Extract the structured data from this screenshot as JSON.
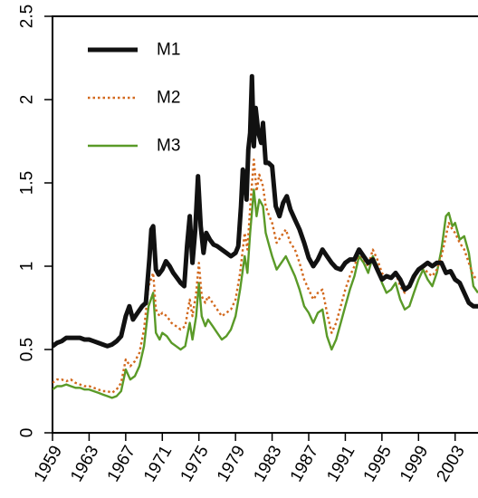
{
  "chart_data": {
    "type": "line",
    "xlim": [
      1959,
      2005.5
    ],
    "ylim": [
      0,
      2.5
    ],
    "x_ticks": [
      "1959",
      "1963",
      "1967",
      "1971",
      "1975",
      "1979",
      "1983",
      "1987",
      "1991",
      "1995",
      "1999",
      "2003"
    ],
    "y_ticks": [
      "0",
      "0.5",
      "1",
      "1.5",
      "2",
      "2.5"
    ],
    "legend_position": "top-left",
    "grid": false,
    "series": [
      {
        "name": "M1",
        "color": "#111111",
        "style": "solid-thick",
        "points": [
          [
            1959,
            0.52
          ],
          [
            1959.5,
            0.54
          ],
          [
            1960,
            0.55
          ],
          [
            1960.5,
            0.57
          ],
          [
            1961,
            0.57
          ],
          [
            1961.5,
            0.57
          ],
          [
            1962,
            0.57
          ],
          [
            1962.5,
            0.56
          ],
          [
            1963,
            0.56
          ],
          [
            1963.5,
            0.55
          ],
          [
            1964,
            0.54
          ],
          [
            1964.5,
            0.53
          ],
          [
            1965,
            0.52
          ],
          [
            1965.5,
            0.53
          ],
          [
            1966,
            0.55
          ],
          [
            1966.5,
            0.58
          ],
          [
            1967,
            0.7
          ],
          [
            1967.4,
            0.76
          ],
          [
            1967.8,
            0.68
          ],
          [
            1968.3,
            0.72
          ],
          [
            1968.8,
            0.76
          ],
          [
            1969.2,
            0.78
          ],
          [
            1969.6,
            1.05
          ],
          [
            1969.8,
            1.22
          ],
          [
            1970,
            1.24
          ],
          [
            1970.3,
            0.98
          ],
          [
            1970.6,
            0.95
          ],
          [
            1971,
            0.98
          ],
          [
            1971.4,
            1.03
          ],
          [
            1971.8,
            1.0
          ],
          [
            1972.2,
            0.96
          ],
          [
            1972.6,
            0.93
          ],
          [
            1973,
            0.9
          ],
          [
            1973.4,
            0.88
          ],
          [
            1973.7,
            1.12
          ],
          [
            1974,
            1.3
          ],
          [
            1974.3,
            1.02
          ],
          [
            1974.6,
            1.22
          ],
          [
            1974.9,
            1.54
          ],
          [
            1975.2,
            1.24
          ],
          [
            1975.5,
            1.08
          ],
          [
            1975.8,
            1.2
          ],
          [
            1976.2,
            1.16
          ],
          [
            1976.6,
            1.13
          ],
          [
            1977,
            1.12
          ],
          [
            1977.5,
            1.1
          ],
          [
            1978,
            1.08
          ],
          [
            1978.5,
            1.06
          ],
          [
            1979,
            1.08
          ],
          [
            1979.3,
            1.12
          ],
          [
            1979.6,
            1.36
          ],
          [
            1979.8,
            1.58
          ],
          [
            1980,
            1.55
          ],
          [
            1980.2,
            1.4
          ],
          [
            1980.4,
            1.7
          ],
          [
            1980.6,
            1.8
          ],
          [
            1980.8,
            2.14
          ],
          [
            1981,
            1.72
          ],
          [
            1981.2,
            1.95
          ],
          [
            1981.5,
            1.8
          ],
          [
            1981.8,
            1.74
          ],
          [
            1982,
            1.86
          ],
          [
            1982.3,
            1.62
          ],
          [
            1982.6,
            1.62
          ],
          [
            1983,
            1.6
          ],
          [
            1983.4,
            1.36
          ],
          [
            1983.8,
            1.3
          ],
          [
            1984.2,
            1.38
          ],
          [
            1984.6,
            1.42
          ],
          [
            1985,
            1.34
          ],
          [
            1985.5,
            1.28
          ],
          [
            1986,
            1.22
          ],
          [
            1986.5,
            1.14
          ],
          [
            1987,
            1.05
          ],
          [
            1987.5,
            1.0
          ],
          [
            1988,
            1.04
          ],
          [
            1988.5,
            1.1
          ],
          [
            1989,
            1.06
          ],
          [
            1989.5,
            1.02
          ],
          [
            1990,
            0.99
          ],
          [
            1990.5,
            0.98
          ],
          [
            1991,
            1.02
          ],
          [
            1991.5,
            1.04
          ],
          [
            1992,
            1.04
          ],
          [
            1992.5,
            1.1
          ],
          [
            1993,
            1.06
          ],
          [
            1993.5,
            1.02
          ],
          [
            1994,
            1.04
          ],
          [
            1994.5,
            0.98
          ],
          [
            1995,
            0.92
          ],
          [
            1995.5,
            0.94
          ],
          [
            1996,
            0.93
          ],
          [
            1996.5,
            0.96
          ],
          [
            1997,
            0.92
          ],
          [
            1997.5,
            0.86
          ],
          [
            1998,
            0.88
          ],
          [
            1998.5,
            0.94
          ],
          [
            1999,
            0.98
          ],
          [
            1999.5,
            1.0
          ],
          [
            2000,
            1.02
          ],
          [
            2000.5,
            1.0
          ],
          [
            2001,
            1.02
          ],
          [
            2001.5,
            1.02
          ],
          [
            2002,
            0.96
          ],
          [
            2002.5,
            0.97
          ],
          [
            2003,
            0.92
          ],
          [
            2003.5,
            0.9
          ],
          [
            2004,
            0.84
          ],
          [
            2004.5,
            0.78
          ],
          [
            2005,
            0.76
          ],
          [
            2005.5,
            0.76
          ]
        ]
      },
      {
        "name": "M2",
        "color": "#d2691e",
        "style": "dotted",
        "points": [
          [
            1959,
            0.3
          ],
          [
            1959.5,
            0.32
          ],
          [
            1960,
            0.32
          ],
          [
            1960.5,
            0.31
          ],
          [
            1961,
            0.32
          ],
          [
            1961.5,
            0.3
          ],
          [
            1962,
            0.29
          ],
          [
            1962.5,
            0.28
          ],
          [
            1963,
            0.28
          ],
          [
            1963.5,
            0.27
          ],
          [
            1964,
            0.26
          ],
          [
            1964.5,
            0.25
          ],
          [
            1965,
            0.25
          ],
          [
            1965.5,
            0.24
          ],
          [
            1966,
            0.26
          ],
          [
            1966.5,
            0.3
          ],
          [
            1967,
            0.44
          ],
          [
            1967.5,
            0.4
          ],
          [
            1968,
            0.43
          ],
          [
            1968.5,
            0.48
          ],
          [
            1969,
            0.62
          ],
          [
            1969.5,
            0.88
          ],
          [
            1970,
            0.96
          ],
          [
            1970.3,
            0.74
          ],
          [
            1970.7,
            0.7
          ],
          [
            1971,
            0.72
          ],
          [
            1971.5,
            0.7
          ],
          [
            1972,
            0.66
          ],
          [
            1972.5,
            0.64
          ],
          [
            1973,
            0.62
          ],
          [
            1973.5,
            0.64
          ],
          [
            1974,
            0.8
          ],
          [
            1974.3,
            0.7
          ],
          [
            1974.7,
            0.84
          ],
          [
            1975,
            1.02
          ],
          [
            1975.3,
            0.82
          ],
          [
            1975.7,
            0.78
          ],
          [
            1976,
            0.82
          ],
          [
            1976.5,
            0.78
          ],
          [
            1977,
            0.74
          ],
          [
            1977.5,
            0.7
          ],
          [
            1978,
            0.72
          ],
          [
            1978.5,
            0.74
          ],
          [
            1979,
            0.8
          ],
          [
            1979.5,
            0.96
          ],
          [
            1980,
            1.2
          ],
          [
            1980.3,
            1.1
          ],
          [
            1980.6,
            1.35
          ],
          [
            1981,
            1.64
          ],
          [
            1981.3,
            1.45
          ],
          [
            1981.6,
            1.55
          ],
          [
            1982,
            1.48
          ],
          [
            1982.3,
            1.36
          ],
          [
            1982.7,
            1.3
          ],
          [
            1983,
            1.26
          ],
          [
            1983.5,
            1.14
          ],
          [
            1984,
            1.18
          ],
          [
            1984.5,
            1.22
          ],
          [
            1985,
            1.14
          ],
          [
            1985.5,
            1.1
          ],
          [
            1986,
            1.02
          ],
          [
            1986.5,
            0.92
          ],
          [
            1987,
            0.86
          ],
          [
            1987.5,
            0.8
          ],
          [
            1988,
            0.84
          ],
          [
            1988.5,
            0.86
          ],
          [
            1989,
            0.72
          ],
          [
            1989.5,
            0.6
          ],
          [
            1990,
            0.66
          ],
          [
            1990.5,
            0.76
          ],
          [
            1991,
            0.86
          ],
          [
            1991.5,
            0.94
          ],
          [
            1992,
            1.0
          ],
          [
            1992.5,
            1.08
          ],
          [
            1993,
            1.04
          ],
          [
            1993.5,
            1.0
          ],
          [
            1994,
            1.1
          ],
          [
            1994.5,
            1.04
          ],
          [
            1995,
            0.96
          ],
          [
            1995.5,
            0.92
          ],
          [
            1996,
            0.94
          ],
          [
            1996.5,
            0.96
          ],
          [
            1997,
            0.88
          ],
          [
            1997.5,
            0.84
          ],
          [
            1998,
            0.88
          ],
          [
            1998.5,
            0.92
          ],
          [
            1999,
            0.98
          ],
          [
            1999.5,
            1.0
          ],
          [
            2000,
            0.96
          ],
          [
            2000.5,
            0.94
          ],
          [
            2001,
            0.98
          ],
          [
            2001.5,
            1.06
          ],
          [
            2002,
            1.18
          ],
          [
            2002.3,
            1.26
          ],
          [
            2002.7,
            1.22
          ],
          [
            2003,
            1.2
          ],
          [
            2003.5,
            1.14
          ],
          [
            2004,
            1.1
          ],
          [
            2004.5,
            1.02
          ],
          [
            2005,
            0.94
          ],
          [
            2005.5,
            0.92
          ]
        ]
      },
      {
        "name": "M3",
        "color": "#5a9a28",
        "style": "solid",
        "points": [
          [
            1959,
            0.26
          ],
          [
            1959.5,
            0.28
          ],
          [
            1960,
            0.28
          ],
          [
            1960.5,
            0.29
          ],
          [
            1961,
            0.28
          ],
          [
            1961.5,
            0.27
          ],
          [
            1962,
            0.27
          ],
          [
            1962.5,
            0.26
          ],
          [
            1963,
            0.26
          ],
          [
            1963.5,
            0.25
          ],
          [
            1964,
            0.24
          ],
          [
            1964.5,
            0.23
          ],
          [
            1965,
            0.22
          ],
          [
            1965.5,
            0.21
          ],
          [
            1966,
            0.22
          ],
          [
            1966.5,
            0.25
          ],
          [
            1967,
            0.38
          ],
          [
            1967.5,
            0.32
          ],
          [
            1968,
            0.34
          ],
          [
            1968.5,
            0.4
          ],
          [
            1969,
            0.52
          ],
          [
            1969.5,
            0.76
          ],
          [
            1970,
            0.84
          ],
          [
            1970.3,
            0.6
          ],
          [
            1970.7,
            0.56
          ],
          [
            1971,
            0.6
          ],
          [
            1971.5,
            0.58
          ],
          [
            1972,
            0.54
          ],
          [
            1972.5,
            0.52
          ],
          [
            1973,
            0.5
          ],
          [
            1973.5,
            0.52
          ],
          [
            1974,
            0.66
          ],
          [
            1974.3,
            0.56
          ],
          [
            1974.7,
            0.7
          ],
          [
            1975,
            0.9
          ],
          [
            1975.3,
            0.7
          ],
          [
            1975.7,
            0.64
          ],
          [
            1976,
            0.68
          ],
          [
            1976.5,
            0.64
          ],
          [
            1977,
            0.6
          ],
          [
            1977.5,
            0.56
          ],
          [
            1978,
            0.58
          ],
          [
            1978.5,
            0.62
          ],
          [
            1979,
            0.7
          ],
          [
            1979.5,
            0.86
          ],
          [
            1980,
            1.06
          ],
          [
            1980.3,
            0.96
          ],
          [
            1980.6,
            1.2
          ],
          [
            1981,
            1.46
          ],
          [
            1981.3,
            1.3
          ],
          [
            1981.6,
            1.4
          ],
          [
            1982,
            1.36
          ],
          [
            1982.3,
            1.2
          ],
          [
            1982.7,
            1.12
          ],
          [
            1983,
            1.06
          ],
          [
            1983.5,
            0.98
          ],
          [
            1984,
            1.02
          ],
          [
            1984.5,
            1.06
          ],
          [
            1985,
            1.0
          ],
          [
            1985.5,
            0.94
          ],
          [
            1986,
            0.86
          ],
          [
            1986.5,
            0.76
          ],
          [
            1987,
            0.72
          ],
          [
            1987.5,
            0.66
          ],
          [
            1988,
            0.72
          ],
          [
            1988.5,
            0.74
          ],
          [
            1989,
            0.58
          ],
          [
            1989.5,
            0.5
          ],
          [
            1990,
            0.56
          ],
          [
            1990.5,
            0.66
          ],
          [
            1991,
            0.76
          ],
          [
            1991.5,
            0.86
          ],
          [
            1992,
            0.94
          ],
          [
            1992.5,
            1.06
          ],
          [
            1993,
            1.02
          ],
          [
            1993.5,
            0.96
          ],
          [
            1994,
            1.06
          ],
          [
            1994.5,
            1.0
          ],
          [
            1995,
            0.9
          ],
          [
            1995.5,
            0.84
          ],
          [
            1996,
            0.86
          ],
          [
            1996.5,
            0.9
          ],
          [
            1997,
            0.8
          ],
          [
            1997.5,
            0.74
          ],
          [
            1998,
            0.76
          ],
          [
            1998.5,
            0.84
          ],
          [
            1999,
            0.92
          ],
          [
            1999.5,
            0.98
          ],
          [
            2000,
            0.92
          ],
          [
            2000.5,
            0.88
          ],
          [
            2001,
            0.96
          ],
          [
            2001.5,
            1.1
          ],
          [
            2002,
            1.3
          ],
          [
            2002.3,
            1.32
          ],
          [
            2002.7,
            1.24
          ],
          [
            2003,
            1.26
          ],
          [
            2003.5,
            1.16
          ],
          [
            2004,
            1.18
          ],
          [
            2004.5,
            1.08
          ],
          [
            2005,
            0.88
          ],
          [
            2005.5,
            0.84
          ]
        ]
      }
    ]
  }
}
